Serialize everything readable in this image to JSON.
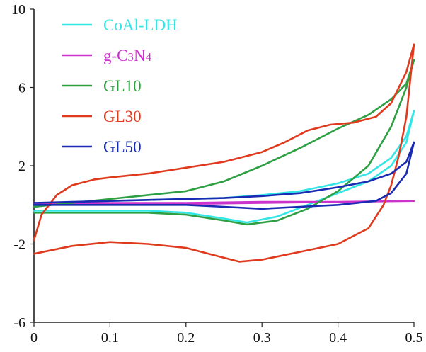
{
  "chart_data": {
    "type": "line",
    "title": "",
    "xlabel": "",
    "ylabel": "",
    "xlim": [
      0,
      0.5
    ],
    "ylim": [
      -6,
      10
    ],
    "x_ticks": [
      "0",
      "0.1",
      "0.2",
      "0.3",
      "0.4",
      "0.5"
    ],
    "y_ticks": [
      "10",
      "6",
      "2",
      "-2",
      "-6"
    ],
    "grid": false,
    "legend_position": "top-left",
    "series": [
      {
        "name": "CoAl-LDH",
        "color": "#33e6e6",
        "points": [
          [
            0,
            0.0
          ],
          [
            0.05,
            0.1
          ],
          [
            0.1,
            0.2
          ],
          [
            0.15,
            0.25
          ],
          [
            0.2,
            0.3
          ],
          [
            0.25,
            0.35
          ],
          [
            0.3,
            0.5
          ],
          [
            0.35,
            0.7
          ],
          [
            0.4,
            1.1
          ],
          [
            0.44,
            1.6
          ],
          [
            0.47,
            2.4
          ],
          [
            0.49,
            3.5
          ],
          [
            0.5,
            4.8
          ],
          [
            0.49,
            3.2
          ],
          [
            0.47,
            2.0
          ],
          [
            0.44,
            1.2
          ],
          [
            0.4,
            0.6
          ],
          [
            0.36,
            0.0
          ],
          [
            0.32,
            -0.6
          ],
          [
            0.28,
            -0.9
          ],
          [
            0.25,
            -0.7
          ],
          [
            0.2,
            -0.4
          ],
          [
            0.15,
            -0.3
          ],
          [
            0.1,
            -0.3
          ],
          [
            0.05,
            -0.3
          ],
          [
            0,
            -0.3
          ]
        ]
      },
      {
        "name": "g-C3N4",
        "color": "#cc33cc",
        "points": [
          [
            0,
            0.1
          ],
          [
            0.1,
            0.1
          ],
          [
            0.2,
            0.1
          ],
          [
            0.3,
            0.15
          ],
          [
            0.4,
            0.15
          ],
          [
            0.5,
            0.2
          ],
          [
            0.4,
            0.15
          ],
          [
            0.3,
            0.1
          ],
          [
            0.2,
            0.05
          ],
          [
            0.1,
            0.05
          ],
          [
            0,
            0.05
          ]
        ]
      },
      {
        "name": "GL10",
        "color": "#2ea043",
        "points": [
          [
            0,
            -0.1
          ],
          [
            0.05,
            0.1
          ],
          [
            0.1,
            0.3
          ],
          [
            0.15,
            0.5
          ],
          [
            0.2,
            0.7
          ],
          [
            0.25,
            1.2
          ],
          [
            0.3,
            2.0
          ],
          [
            0.35,
            2.9
          ],
          [
            0.4,
            3.9
          ],
          [
            0.44,
            4.6
          ],
          [
            0.47,
            5.4
          ],
          [
            0.49,
            6.2
          ],
          [
            0.5,
            7.4
          ],
          [
            0.49,
            6.0
          ],
          [
            0.47,
            4.0
          ],
          [
            0.44,
            2.0
          ],
          [
            0.4,
            0.7
          ],
          [
            0.36,
            -0.2
          ],
          [
            0.32,
            -0.8
          ],
          [
            0.28,
            -1.0
          ],
          [
            0.25,
            -0.8
          ],
          [
            0.2,
            -0.5
          ],
          [
            0.15,
            -0.4
          ],
          [
            0.1,
            -0.4
          ],
          [
            0.05,
            -0.4
          ],
          [
            0,
            -0.4
          ]
        ]
      },
      {
        "name": "GL30",
        "color": "#e03a1e",
        "points": [
          [
            0,
            -1.8
          ],
          [
            0.01,
            -0.5
          ],
          [
            0.03,
            0.5
          ],
          [
            0.05,
            1.0
          ],
          [
            0.08,
            1.3
          ],
          [
            0.1,
            1.4
          ],
          [
            0.15,
            1.6
          ],
          [
            0.2,
            1.9
          ],
          [
            0.25,
            2.2
          ],
          [
            0.3,
            2.7
          ],
          [
            0.33,
            3.2
          ],
          [
            0.36,
            3.8
          ],
          [
            0.39,
            4.1
          ],
          [
            0.42,
            4.2
          ],
          [
            0.45,
            4.5
          ],
          [
            0.47,
            5.2
          ],
          [
            0.49,
            6.8
          ],
          [
            0.5,
            8.2
          ],
          [
            0.49,
            4.5
          ],
          [
            0.48,
            2.5
          ],
          [
            0.47,
            1.0
          ],
          [
            0.46,
            0.0
          ],
          [
            0.44,
            -1.2
          ],
          [
            0.42,
            -1.6
          ],
          [
            0.4,
            -2.0
          ],
          [
            0.35,
            -2.4
          ],
          [
            0.3,
            -2.8
          ],
          [
            0.27,
            -2.9
          ],
          [
            0.24,
            -2.6
          ],
          [
            0.2,
            -2.2
          ],
          [
            0.15,
            -2.0
          ],
          [
            0.1,
            -1.9
          ],
          [
            0.05,
            -2.1
          ],
          [
            0,
            -2.5
          ]
        ]
      },
      {
        "name": "GL50",
        "color": "#1a2bb3",
        "points": [
          [
            0,
            0.1
          ],
          [
            0.05,
            0.15
          ],
          [
            0.1,
            0.2
          ],
          [
            0.15,
            0.25
          ],
          [
            0.2,
            0.3
          ],
          [
            0.25,
            0.35
          ],
          [
            0.3,
            0.45
          ],
          [
            0.35,
            0.6
          ],
          [
            0.4,
            0.9
          ],
          [
            0.44,
            1.2
          ],
          [
            0.47,
            1.6
          ],
          [
            0.49,
            2.2
          ],
          [
            0.5,
            3.2
          ],
          [
            0.49,
            1.6
          ],
          [
            0.47,
            0.6
          ],
          [
            0.45,
            0.2
          ],
          [
            0.4,
            0.0
          ],
          [
            0.35,
            -0.1
          ],
          [
            0.3,
            -0.2
          ],
          [
            0.25,
            -0.1
          ],
          [
            0.2,
            0.0
          ],
          [
            0.1,
            0.0
          ],
          [
            0.05,
            0.0
          ],
          [
            0,
            0.0
          ]
        ]
      }
    ]
  }
}
